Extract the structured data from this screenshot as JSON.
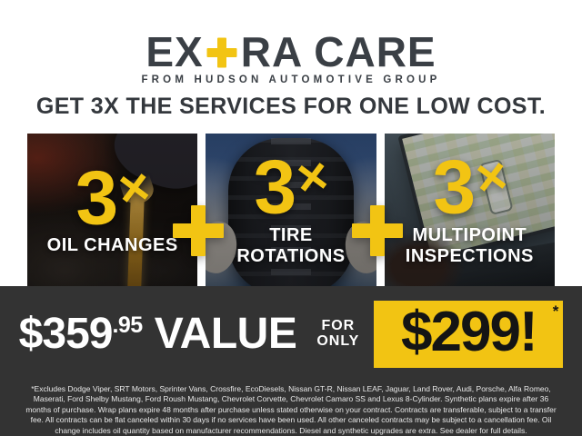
{
  "logo": {
    "part1": "EX",
    "part2": "RA CARE",
    "plus_icon": "plus-icon",
    "subtitle": "FROM HUDSON AUTOMOTIVE GROUP"
  },
  "headline": "GET 3X THE SERVICES FOR ONE LOW COST.",
  "panels": [
    {
      "multiplier_number": "3",
      "multiplier_times": "×",
      "label": "OIL CHANGES",
      "photo": "oil-pour-photo"
    },
    {
      "multiplier_number": "3",
      "multiplier_times": "×",
      "label": "TIRE ROTATIONS",
      "photo": "tire-hold-photo"
    },
    {
      "multiplier_number": "3",
      "multiplier_times": "×",
      "label": "MULTIPOINT INSPECTIONS",
      "photo": "laptop-inspection-photo"
    }
  ],
  "separators": {
    "icon": "plus-icon"
  },
  "pricing": {
    "value_dollars": "$359",
    "value_cents": ".95",
    "value_label": "VALUE",
    "for_word": "FOR",
    "only_word": "ONLY",
    "sale_price": "$299!",
    "asterisk": "*"
  },
  "disclaimer": "*Excludes Dodge Viper, SRT Motors, Sprinter Vans, Crossfire, EcoDiesels, Nissan GT-R, Nissan LEAF, Jaguar, Land Rover, Audi, Porsche, Alfa Romeo, Maserati, Ford Shelby Mustang, Ford Roush Mustang, Chevrolet Corvette, Chevrolet Camaro SS and Lexus 8-Cylinder. Synthetic plans expire after 36 months of purchase. Wrap plans expire 48 months after purchase unless stated otherwise on your contract. Contracts are transferable, subject to a transfer fee. All contracts can be flat canceled within 30 days if no services have been used. All other canceled contracts may be subject to a cancellation fee. Oil change includes oil quantity based on manufacturer recommendations. Diesel and synthetic upgrades are extra. See dealer for full details.",
  "colors": {
    "accent_yellow": "#f2c413",
    "dark_band": "#333333",
    "headline_text": "#34383d",
    "logo_text": "#3a3f45",
    "white": "#ffffff"
  }
}
